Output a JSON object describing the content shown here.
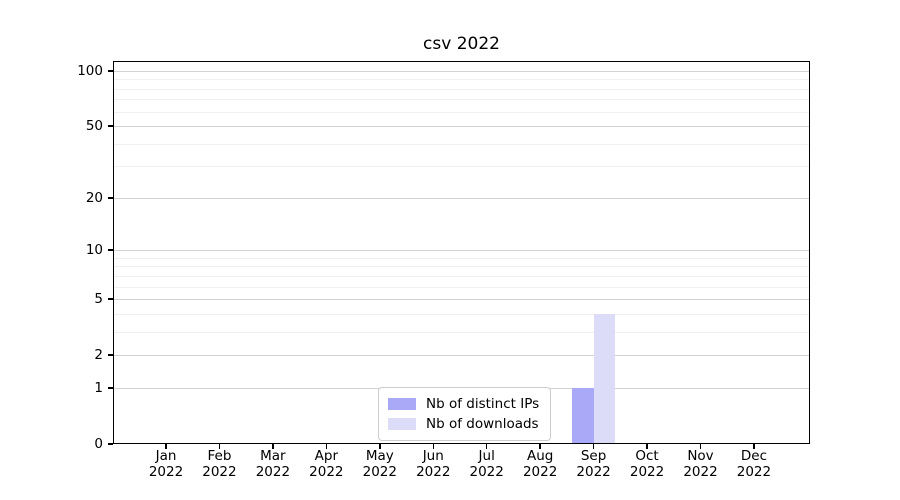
{
  "chart_data": {
    "type": "bar",
    "title": "csv 2022",
    "categories": [
      "Jan 2022",
      "Feb 2022",
      "Mar 2022",
      "Apr 2022",
      "May 2022",
      "Jun 2022",
      "Jul 2022",
      "Aug 2022",
      "Sep 2022",
      "Oct 2022",
      "Nov 2022",
      "Dec 2022"
    ],
    "series": [
      {
        "name": "Nb of distinct IPs",
        "color": "#a9a9f7",
        "values": [
          0,
          0,
          0,
          0,
          0,
          0,
          0,
          0,
          1,
          0,
          0,
          0
        ]
      },
      {
        "name": "Nb of downloads",
        "color": "#dcdcf8",
        "values": [
          0,
          0,
          0,
          0,
          0,
          0,
          0,
          0,
          4,
          0,
          0,
          0
        ]
      }
    ],
    "yscale": "log1p",
    "ylim": [
      0,
      113
    ],
    "y_major_ticks": [
      0,
      1,
      2,
      5,
      10,
      20,
      50,
      100
    ],
    "y_minor_ticks": [
      3,
      4,
      6,
      7,
      8,
      9,
      30,
      40,
      60,
      70,
      80,
      90
    ],
    "xlabel": "",
    "ylabel": "",
    "grid": true,
    "legend_position": "lower center"
  },
  "colors": {
    "background": "#ffffff",
    "spine": "#000000",
    "text": "#000000",
    "major_grid": "#d3d3d3",
    "minor_grid": "#efefef",
    "legend_border": "#cccccc"
  }
}
